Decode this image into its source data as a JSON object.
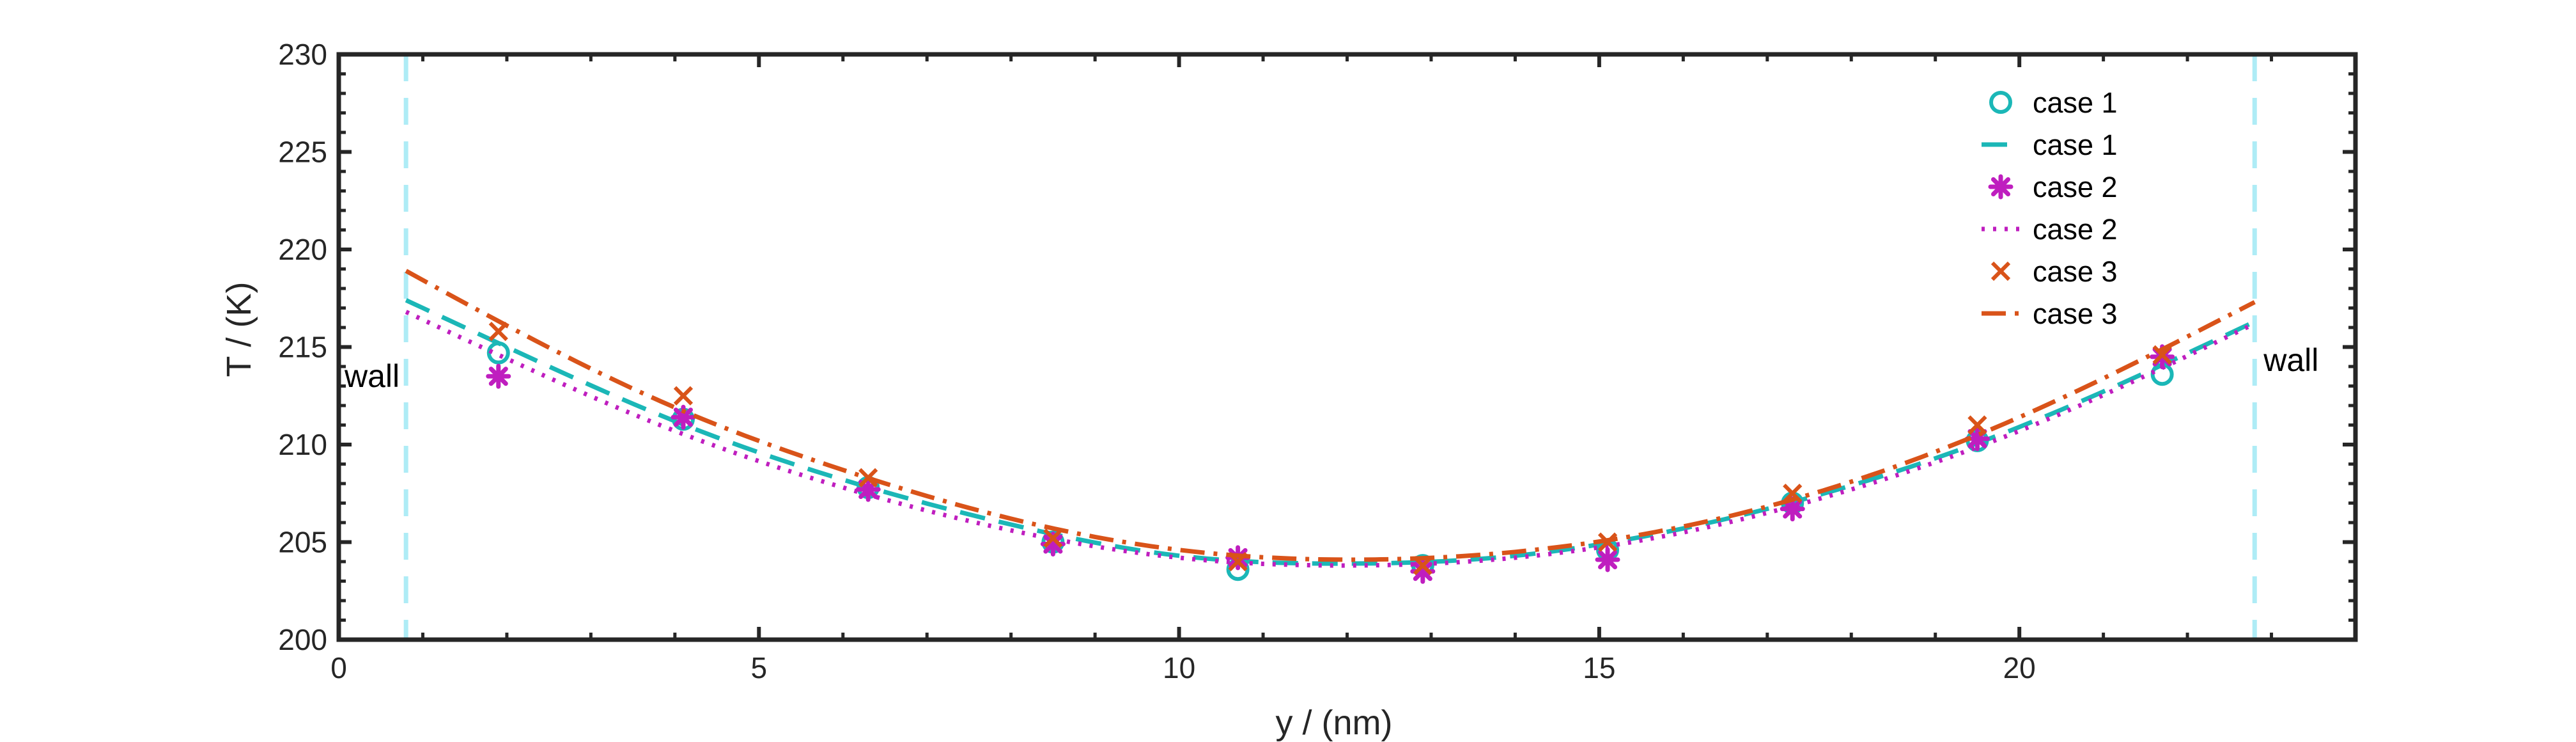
{
  "chart_data": {
    "type": "line",
    "title": "",
    "xlabel": "y / (nm)",
    "ylabel": "T / (K)",
    "xlim": [
      0,
      24
    ],
    "ylim": [
      200,
      230
    ],
    "xticks": [
      0,
      5,
      10,
      15,
      20
    ],
    "yticks": [
      200,
      205,
      210,
      215,
      220,
      225,
      230
    ],
    "grid": false,
    "legend_position": "top-right",
    "walls": [
      {
        "x": 0.8,
        "label": "wall"
      },
      {
        "x": 22.8,
        "label": "wall"
      }
    ],
    "series": [
      {
        "name": "case 1",
        "style": "markers",
        "marker": "circle",
        "color": "#1bb7b7",
        "x": [
          1.9,
          4.1,
          6.3,
          8.5,
          10.7,
          12.9,
          15.1,
          17.3,
          19.5,
          21.7
        ],
        "y": [
          214.7,
          211.3,
          207.8,
          205.0,
          203.6,
          203.8,
          204.6,
          207.0,
          210.2,
          213.6
        ]
      },
      {
        "name": "case 1",
        "style": "dashed",
        "color": "#1bb7b7",
        "x": [
          0.8,
          2.0,
          4.0,
          6.0,
          8.0,
          10.0,
          12.0,
          14.0,
          16.0,
          18.0,
          20.0,
          22.8
        ],
        "y": [
          217.4,
          215.0,
          211.2,
          208.2,
          205.9,
          204.3,
          203.9,
          204.3,
          205.7,
          207.9,
          210.9,
          216.3
        ]
      },
      {
        "name": "case 2",
        "style": "markers",
        "marker": "asterisk",
        "color": "#bf1ebf",
        "x": [
          1.9,
          4.1,
          6.3,
          8.5,
          10.7,
          12.9,
          15.1,
          17.3,
          19.5,
          21.7
        ],
        "y": [
          213.5,
          211.4,
          207.7,
          204.9,
          204.2,
          203.5,
          204.1,
          206.7,
          210.3,
          214.5
        ]
      },
      {
        "name": "case 2",
        "style": "dotted",
        "color": "#bf1ebf",
        "x": [
          0.8,
          2.0,
          4.0,
          6.0,
          8.0,
          10.0,
          12.0,
          14.0,
          16.0,
          18.0,
          20.0,
          22.8
        ],
        "y": [
          216.8,
          214.4,
          210.7,
          207.8,
          205.6,
          204.2,
          203.8,
          204.2,
          205.5,
          207.7,
          210.7,
          216.2
        ]
      },
      {
        "name": "case 3",
        "style": "markers",
        "marker": "x",
        "color": "#d95319",
        "x": [
          1.9,
          4.1,
          6.3,
          8.5,
          10.7,
          12.9,
          15.1,
          17.3,
          19.5,
          21.7
        ],
        "y": [
          215.8,
          212.5,
          208.3,
          205.2,
          204.0,
          203.8,
          205.0,
          207.5,
          211.0,
          214.6
        ]
      },
      {
        "name": "case 3",
        "style": "dashdot",
        "color": "#d95319",
        "x": [
          0.8,
          2.0,
          4.0,
          6.0,
          8.0,
          10.0,
          12.0,
          14.0,
          16.0,
          18.0,
          20.0,
          22.8
        ],
        "y": [
          218.9,
          216.1,
          211.9,
          208.7,
          206.2,
          204.6,
          204.1,
          204.5,
          205.8,
          208.1,
          211.4,
          217.3
        ]
      }
    ]
  }
}
